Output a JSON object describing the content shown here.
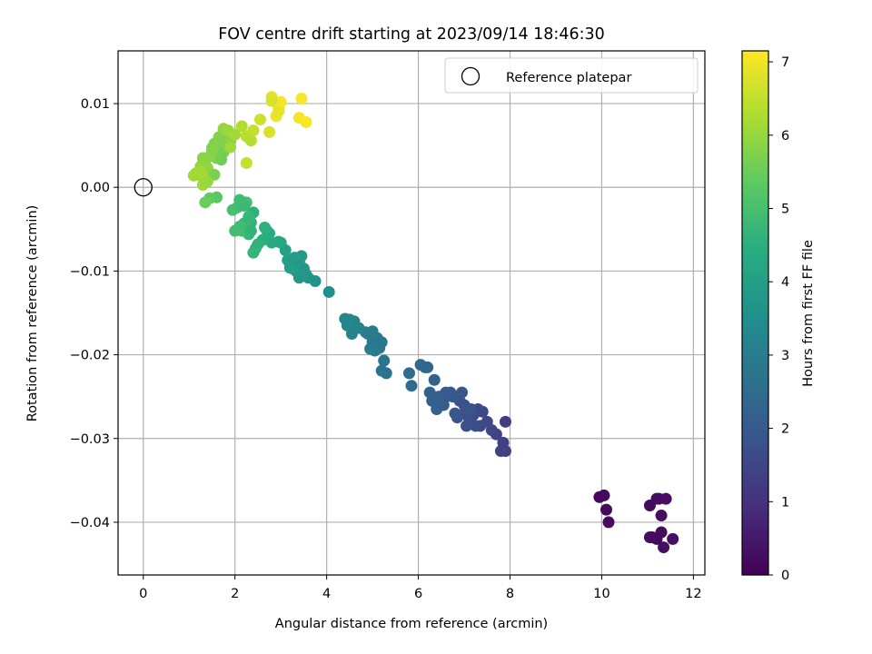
{
  "chart_data": {
    "type": "scatter",
    "title": "FOV centre drift starting at 2023/09/14 18:46:30",
    "xlabel": "Angular distance from reference (arcmin)",
    "ylabel": "Rotation from reference (arcmin)",
    "xlim": [
      -0.55,
      12.25
    ],
    "ylim": [
      -0.0463,
      0.0163
    ],
    "xticks": [
      0,
      2,
      4,
      6,
      8,
      10,
      12
    ],
    "xtick_labels": [
      "0",
      "2",
      "4",
      "6",
      "8",
      "10",
      "12"
    ],
    "yticks": [
      0.01,
      0.0,
      -0.01,
      -0.02,
      -0.03,
      -0.04
    ],
    "ytick_labels": [
      "0.01",
      "0.00",
      "−0.01",
      "−0.02",
      "−0.03",
      "−0.04"
    ],
    "grid": true,
    "legend": {
      "position": "top-right",
      "entries": [
        "Reference platepar"
      ]
    },
    "reference_point": {
      "x": 0,
      "y": 0
    },
    "colorbar": {
      "label": "Hours from first FF file",
      "range": [
        0,
        7.15
      ],
      "ticks": [
        0,
        1,
        2,
        3,
        4,
        5,
        6,
        7
      ],
      "tick_labels": [
        "0",
        "1",
        "2",
        "3",
        "4",
        "5",
        "6",
        "7"
      ],
      "colormap": "viridis"
    },
    "series": [
      {
        "x": [
          9.95,
          10.05,
          10.1,
          10.15,
          11.05,
          11.1,
          11.2,
          11.25,
          11.3,
          11.35,
          11.2,
          11.3,
          11.05,
          11.4,
          11.55,
          7.9,
          7.85,
          7.9,
          7.8,
          7.7,
          7.6,
          7.5,
          7.35,
          7.4,
          7.2,
          7.1,
          7.0,
          7.3,
          7.25,
          7.05,
          6.9,
          7.0,
          6.85,
          7.15,
          6.95,
          6.8,
          6.75,
          6.6,
          6.7,
          6.5,
          6.4,
          6.55,
          6.6,
          6.45,
          6.3,
          6.25,
          6.35,
          6.2,
          6.15,
          6.05,
          5.85,
          5.8,
          5.3,
          5.2,
          5.25,
          5.15,
          5.2,
          5.05,
          4.95,
          5.0,
          4.9,
          4.85,
          5.1,
          5.0,
          4.7,
          4.6,
          4.55,
          4.5,
          4.4,
          4.55,
          4.45,
          4.05,
          3.75,
          3.6,
          3.55,
          3.5,
          3.4,
          3.35,
          3.3,
          3.45,
          3.25,
          3.2,
          3.15,
          3.3,
          3.5,
          3.1,
          3.2,
          3.4,
          3.0,
          2.95,
          2.8,
          2.75,
          2.7,
          2.6,
          2.65,
          2.5,
          2.45,
          2.4,
          2.35,
          2.3,
          2.25,
          2.2,
          2.15,
          2.1,
          2.0,
          2.05,
          1.95,
          2.25,
          2.4,
          2.2,
          2.1,
          2.3,
          2.35,
          1.6,
          1.7,
          1.8,
          1.9,
          1.75,
          1.85,
          1.7,
          1.55,
          1.5,
          1.6,
          1.45,
          1.4,
          1.35,
          1.3,
          1.25,
          1.2,
          1.15,
          1.1,
          1.3,
          1.5,
          1.55,
          1.65,
          1.75,
          1.85,
          1.9,
          2.0,
          1.6,
          1.45,
          1.35,
          1.4,
          1.3,
          1.25,
          2.15,
          2.25,
          2.35,
          2.4,
          2.55,
          2.75,
          2.8,
          2.9,
          2.95,
          3.0,
          2.95,
          3.4,
          3.45,
          3.55,
          2.8,
          2.25
        ],
        "y": [
          -0.037,
          -0.0368,
          -0.0385,
          -0.04,
          -0.038,
          -0.0418,
          -0.0372,
          -0.0372,
          -0.0392,
          -0.043,
          -0.042,
          -0.0412,
          -0.0418,
          -0.0372,
          -0.042,
          -0.028,
          -0.0305,
          -0.0315,
          -0.0315,
          -0.0295,
          -0.029,
          -0.028,
          -0.0285,
          -0.0268,
          -0.0272,
          -0.0275,
          -0.027,
          -0.0265,
          -0.0285,
          -0.0285,
          -0.0255,
          -0.026,
          -0.0275,
          -0.0265,
          -0.0245,
          -0.027,
          -0.025,
          -0.025,
          -0.0245,
          -0.0255,
          -0.0265,
          -0.026,
          -0.0245,
          -0.025,
          -0.0255,
          -0.0245,
          -0.023,
          -0.0215,
          -0.0215,
          -0.0212,
          -0.0237,
          -0.0222,
          -0.0222,
          -0.0219,
          -0.0207,
          -0.0192,
          -0.0185,
          -0.0195,
          -0.0193,
          -0.0185,
          -0.0175,
          -0.0173,
          -0.018,
          -0.0172,
          -0.0168,
          -0.016,
          -0.0175,
          -0.0158,
          -0.0157,
          -0.0168,
          -0.0165,
          -0.0125,
          -0.0112,
          -0.0108,
          -0.0104,
          -0.0104,
          -0.0108,
          -0.0101,
          -0.0095,
          -0.0082,
          -0.0097,
          -0.0092,
          -0.0087,
          -0.0084,
          -0.0097,
          -0.0075,
          -0.0096,
          -0.0089,
          -0.0066,
          -0.0065,
          -0.0066,
          -0.0055,
          -0.0052,
          -0.0063,
          -0.0048,
          -0.0068,
          -0.0073,
          -0.0078,
          -0.0042,
          -0.0056,
          -0.0047,
          -0.0043,
          -0.0052,
          -0.0047,
          -0.0052,
          -0.0024,
          -0.0027,
          -0.0018,
          -0.003,
          -0.0022,
          -0.0015,
          -0.0035,
          -0.0052,
          0.0052,
          0.0058,
          0.0064,
          0.0055,
          0.0042,
          0.0048,
          0.0033,
          0.0052,
          0.0047,
          0.0035,
          0.0037,
          0.0023,
          0.0027,
          0.0035,
          0.0025,
          0.0015,
          0.0017,
          0.0014,
          0.0003,
          0.0045,
          0.0015,
          0.006,
          0.007,
          0.0068,
          0.0048,
          0.0063,
          -0.0012,
          -0.0013,
          -0.0018,
          0.0007,
          0.0013,
          0.0019,
          0.0073,
          0.0061,
          0.0056,
          0.0068,
          0.0081,
          0.0066,
          0.0108,
          0.0085,
          0.0095,
          0.0102,
          0.0091,
          0.0083,
          0.0106,
          0.0078,
          0.0103,
          0.0029
        ],
        "c": [
          0.15,
          0.18,
          0.2,
          0.22,
          0.2,
          0.22,
          0.25,
          0.25,
          0.28,
          0.3,
          0.18,
          0.22,
          0.25,
          0.27,
          0.3,
          1.25,
          1.3,
          1.35,
          1.4,
          1.45,
          1.5,
          1.55,
          1.6,
          1.55,
          1.65,
          1.7,
          1.75,
          1.6,
          1.7,
          1.75,
          1.8,
          1.85,
          1.9,
          1.8,
          1.9,
          1.95,
          2.0,
          2.05,
          2.0,
          2.1,
          2.15,
          2.1,
          2.05,
          2.15,
          2.2,
          2.2,
          2.25,
          2.3,
          2.35,
          2.4,
          2.45,
          2.5,
          2.65,
          2.7,
          2.75,
          2.8,
          2.85,
          2.9,
          2.95,
          2.9,
          3.0,
          3.05,
          2.85,
          3.0,
          3.1,
          3.15,
          3.2,
          3.25,
          3.3,
          3.15,
          3.25,
          3.55,
          3.65,
          3.7,
          3.75,
          3.8,
          3.8,
          3.85,
          3.9,
          3.85,
          3.95,
          4.0,
          4.05,
          3.95,
          3.75,
          4.1,
          4.0,
          3.85,
          4.2,
          4.25,
          4.3,
          4.4,
          4.45,
          4.5,
          4.55,
          4.6,
          4.65,
          4.7,
          4.6,
          4.7,
          4.75,
          4.8,
          4.85,
          4.9,
          4.95,
          4.95,
          5.0,
          5.0,
          4.55,
          4.8,
          4.9,
          4.75,
          4.65,
          5.7,
          5.75,
          5.8,
          5.85,
          5.65,
          5.7,
          5.55,
          5.75,
          5.8,
          5.65,
          5.85,
          5.9,
          5.9,
          5.85,
          5.95,
          6.0,
          6.05,
          6.1,
          6.1,
          5.8,
          5.7,
          5.8,
          5.95,
          6.05,
          6.1,
          6.15,
          5.3,
          5.4,
          5.5,
          6.0,
          6.1,
          6.15,
          6.3,
          6.4,
          6.35,
          6.5,
          6.6,
          6.75,
          6.85,
          6.95,
          7.0,
          7.05,
          6.9,
          7.05,
          7.1,
          7.1,
          6.75,
          6.55
        ]
      }
    ]
  }
}
